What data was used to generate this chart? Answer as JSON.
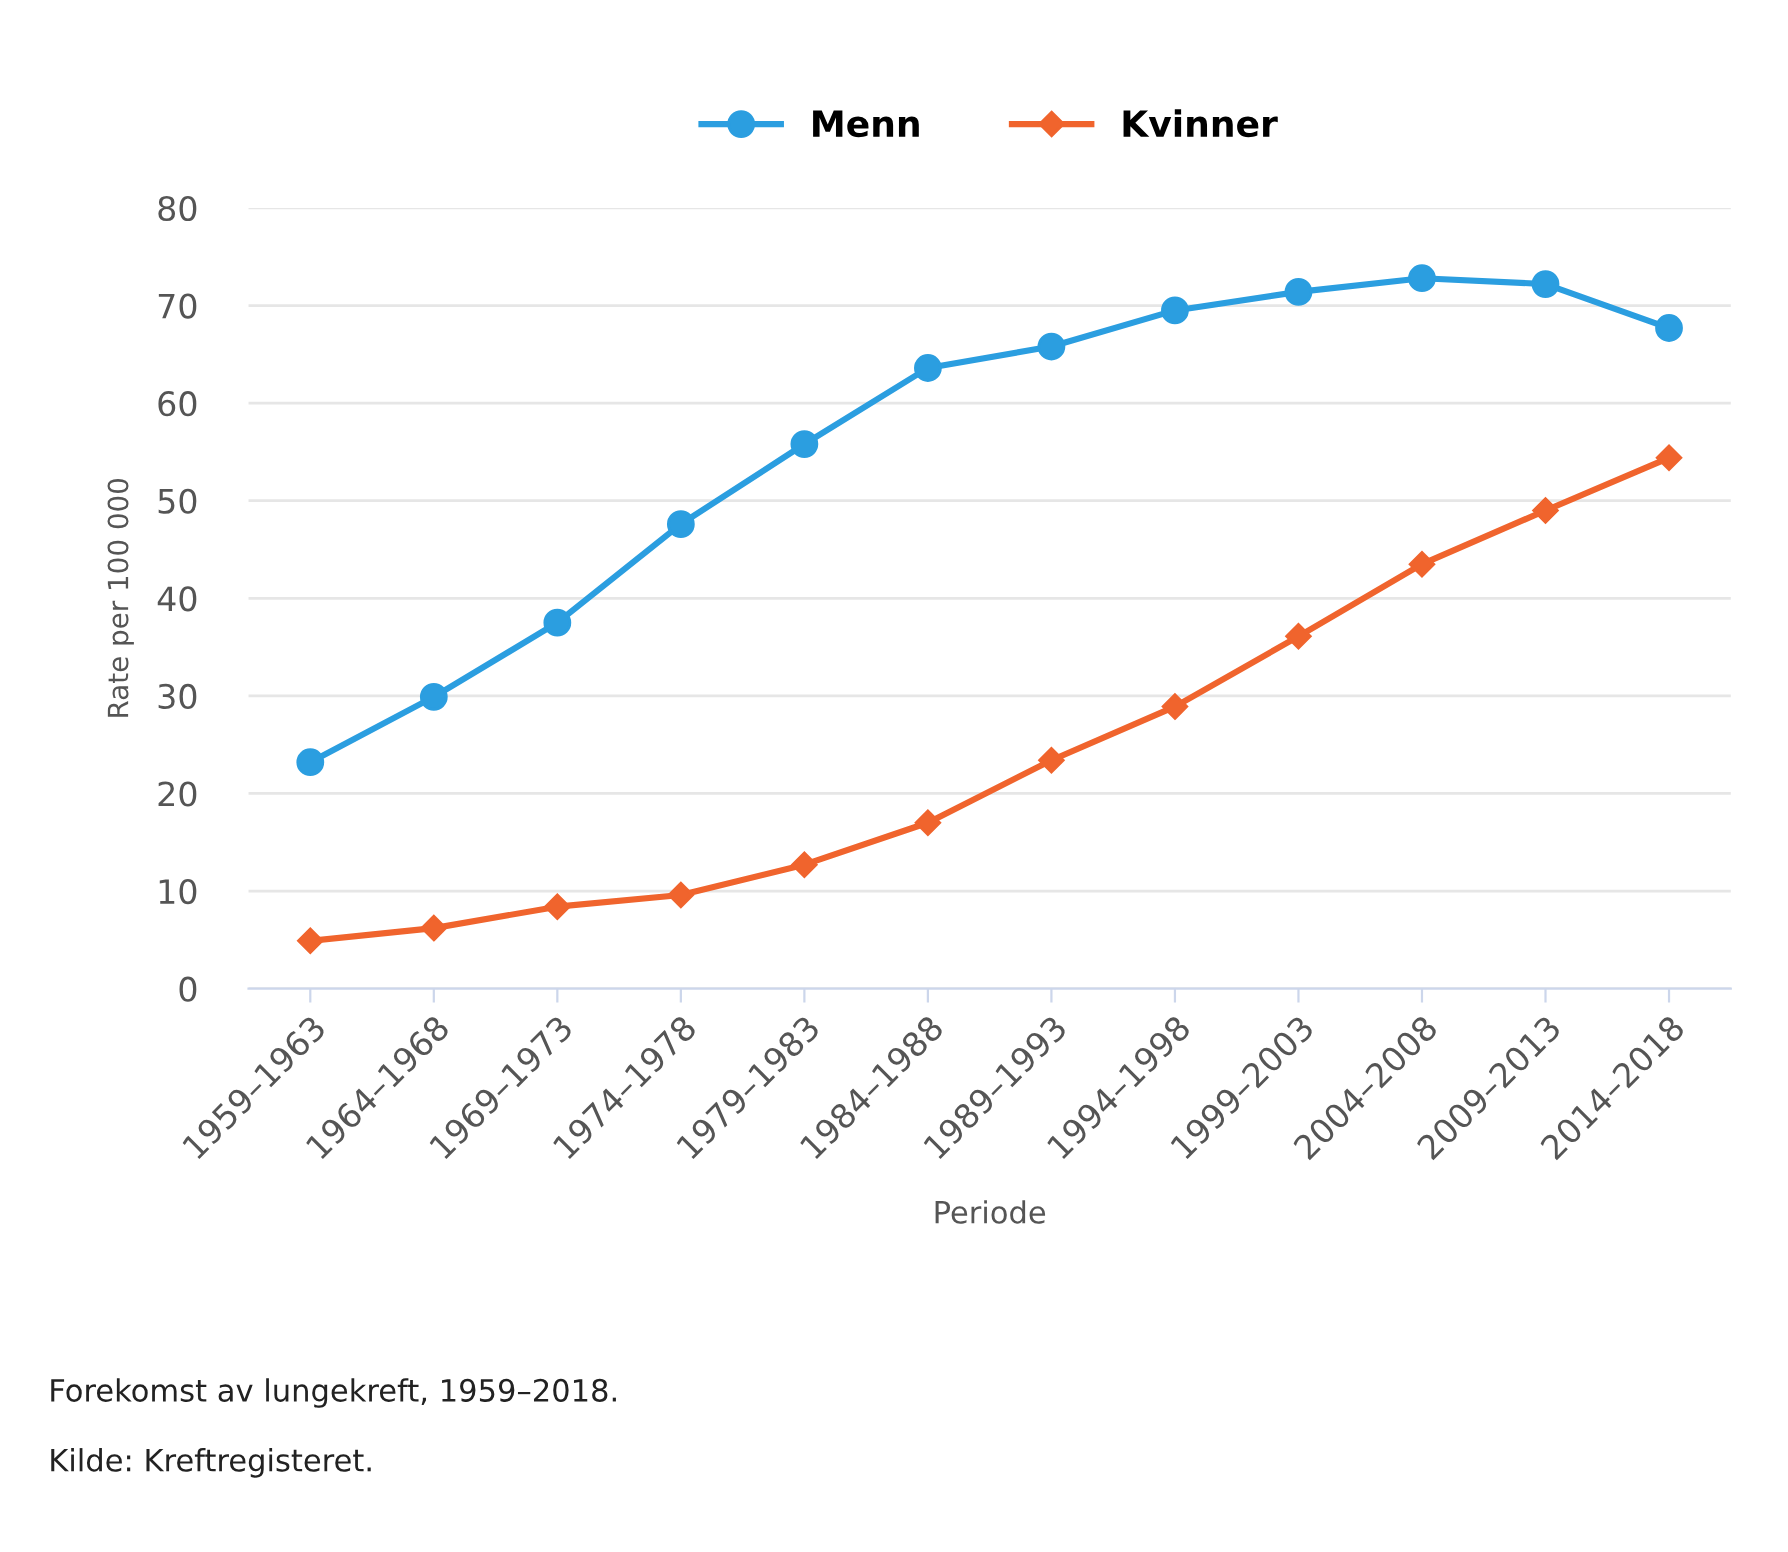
{
  "chart_data": {
    "type": "line",
    "xlabel": "Periode",
    "ylabel": "Rate per 100 000",
    "categories": [
      "1959–1963",
      "1964–1968",
      "1969–1973",
      "1974–1978",
      "1979–1983",
      "1984–1988",
      "1989–1993",
      "1994–1998",
      "1999–2003",
      "2004–2008",
      "2009–2013",
      "2014–2018"
    ],
    "series": [
      {
        "name": "Menn",
        "color": "#2b9ee0",
        "marker": "circle",
        "values": [
          23.2,
          29.9,
          37.5,
          47.6,
          55.8,
          63.6,
          65.8,
          69.5,
          71.4,
          72.8,
          72.2,
          67.7
        ]
      },
      {
        "name": "Kvinner",
        "color": "#f0642d",
        "marker": "diamond",
        "values": [
          4.9,
          6.2,
          8.4,
          9.6,
          12.7,
          17.0,
          23.4,
          28.9,
          36.1,
          43.5,
          49.0,
          54.4
        ]
      }
    ],
    "ylim": [
      0,
      80
    ],
    "yticks": [
      0,
      10,
      20,
      30,
      40,
      50,
      60,
      70,
      80
    ],
    "grid": "y",
    "legend": "top",
    "annotations": [
      "Forekomst av lungekreft, 1959–2018.",
      "Kilde: Kreftregisteret."
    ]
  }
}
